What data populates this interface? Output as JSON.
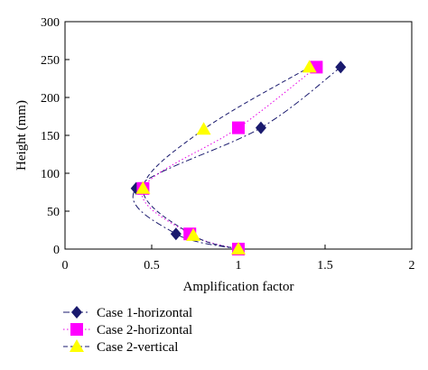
{
  "chart_data": {
    "type": "scatter",
    "xlabel": "Amplification factor",
    "ylabel": "Height (mm)",
    "xlim": [
      0,
      2
    ],
    "ylim": [
      0,
      300
    ],
    "x_ticks": [
      "0",
      "0.5",
      "1",
      "1.5",
      "2"
    ],
    "y_ticks": [
      "0",
      "50",
      "100",
      "150",
      "200",
      "250",
      "300"
    ],
    "grid": false,
    "legend_position": "bottom-left",
    "series": [
      {
        "name": "Case 1-horizontal",
        "marker": "diamond",
        "line": "dash-dot",
        "color": "#1a1a6e",
        "points": [
          [
            1.0,
            0
          ],
          [
            0.64,
            20
          ],
          [
            0.41,
            80
          ],
          [
            1.13,
            160
          ],
          [
            1.59,
            240
          ]
        ]
      },
      {
        "name": "Case 2-horizontal",
        "marker": "square",
        "line": "dotted",
        "color": "#ff00ff",
        "points": [
          [
            1.0,
            0
          ],
          [
            0.72,
            20
          ],
          [
            0.45,
            80
          ],
          [
            1.0,
            160
          ],
          [
            1.45,
            240
          ]
        ]
      },
      {
        "name": "Case 2-vertical",
        "marker": "triangle",
        "line": "dashed",
        "color": "#ffff00",
        "points": [
          [
            1.0,
            0
          ],
          [
            0.74,
            18
          ],
          [
            0.45,
            80
          ],
          [
            0.8,
            158
          ],
          [
            1.41,
            240
          ]
        ]
      }
    ]
  }
}
